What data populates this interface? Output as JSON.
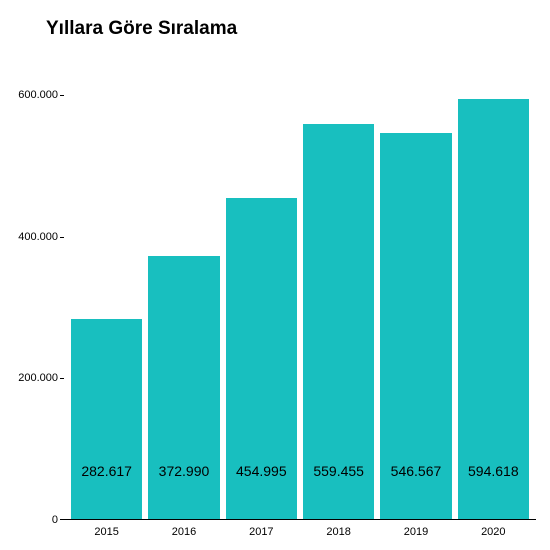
{
  "chart": {
    "type": "bar",
    "title": "Yıllara Göre Sıralama",
    "title_fontsize": 19,
    "title_color": "#000000",
    "background_color": "#ffffff",
    "bar_color": "#18bfbf",
    "axis_color": "#000000",
    "label_color": "#000000",
    "label_fontsize": 14,
    "tick_fontsize": 11,
    "ylim": [
      0,
      650000
    ],
    "yticks": [
      {
        "value": 0,
        "label": "0"
      },
      {
        "value": 200000,
        "label": "200.000"
      },
      {
        "value": 400000,
        "label": "400.000"
      },
      {
        "value": 600000,
        "label": "600.000"
      }
    ],
    "categories": [
      "2015",
      "2016",
      "2017",
      "2018",
      "2019",
      "2020"
    ],
    "values": [
      282617,
      372990,
      454995,
      559455,
      546567,
      594618
    ],
    "value_labels": [
      "282.617",
      "372.990",
      "454.995",
      "559.455",
      "546.567",
      "594.618"
    ],
    "bar_width": 0.92
  }
}
